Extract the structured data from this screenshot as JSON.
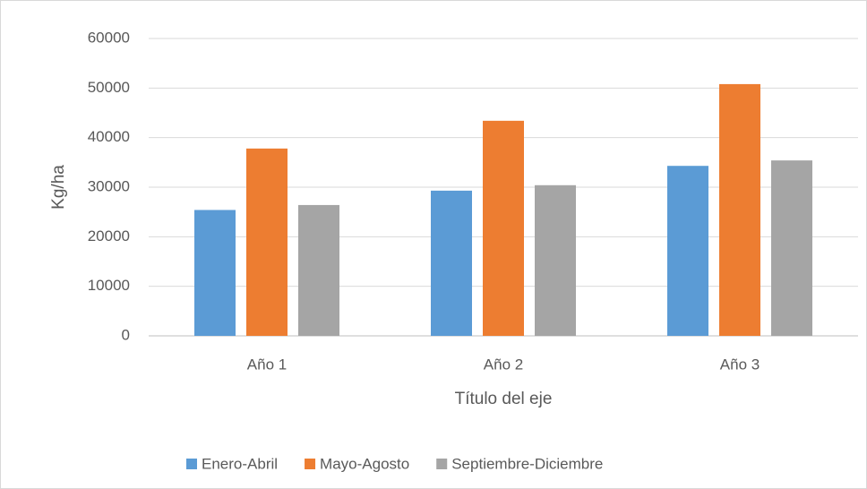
{
  "chart_data": {
    "type": "bar",
    "categories": [
      "Año 1",
      "Año 2",
      "Año 3"
    ],
    "series": [
      {
        "name": "Enero-Abril",
        "color": "#5b9bd5",
        "values": [
          25400,
          29300,
          34300
        ]
      },
      {
        "name": "Mayo-Agosto",
        "color": "#ed7d31",
        "values": [
          37800,
          43400,
          50800
        ]
      },
      {
        "name": "Septiembre-Diciembre",
        "color": "#a5a5a5",
        "values": [
          26400,
          30400,
          35400
        ]
      }
    ],
    "ylim": [
      0,
      60000
    ],
    "yticks": [
      0,
      10000,
      20000,
      30000,
      40000,
      50000,
      60000
    ],
    "ylabel": "Kg/ha",
    "xlabel": "Título del eje",
    "grid": true,
    "legend": "bottom"
  }
}
